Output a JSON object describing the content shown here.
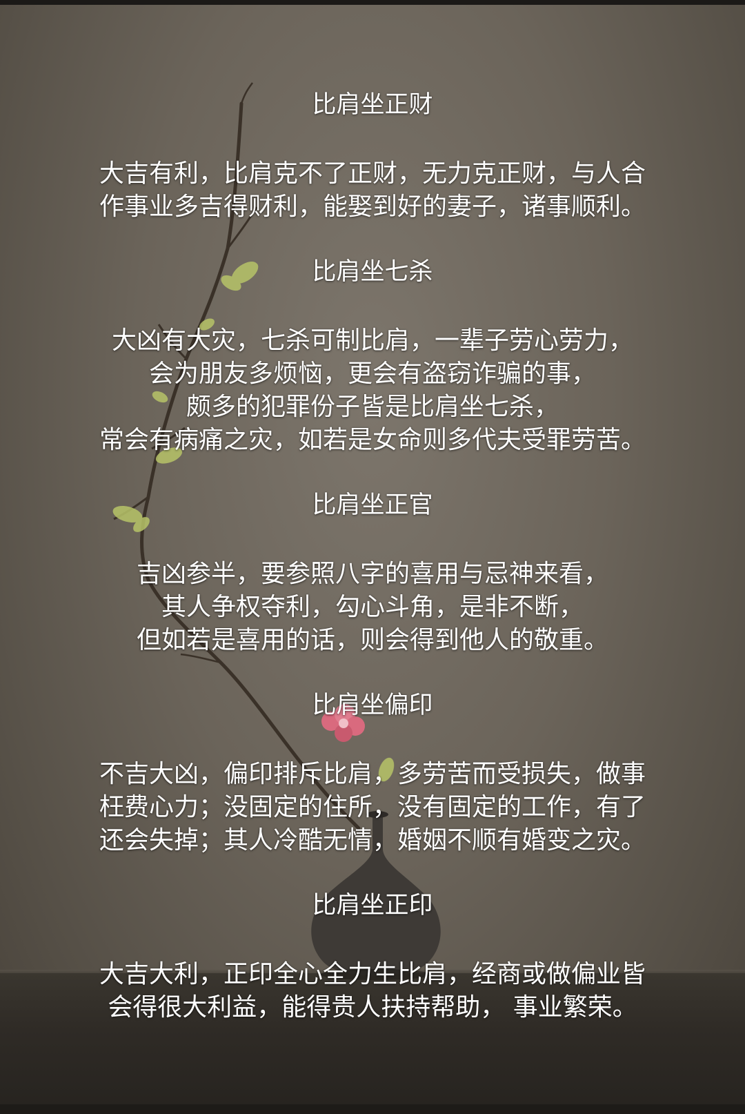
{
  "background": {
    "wall_color": "#6b645a",
    "table_color": "#2f2b26",
    "flower_color": "#d96a7e",
    "leaf_color": "#b7c468",
    "vase_color": "#3e3a36",
    "decor_icons": [
      "branch-icon",
      "blossom-icon",
      "vase-icon"
    ]
  },
  "sections": [
    {
      "title": "比肩坐正财",
      "lines": [
        "大吉有利，比肩克不了正财，无力克正财，与人合",
        "作事业多吉得财利，能娶到好的妻子，诸事顺利。"
      ]
    },
    {
      "title": "比肩坐七杀",
      "lines": [
        "大凶有大灾，七杀可制比肩，一辈子劳心劳力，",
        "会为朋友多烦恼，更会有盗窃诈骗的事，",
        "颇多的犯罪份子皆是比肩坐七杀，",
        "常会有病痛之灾，如若是女命则多代夫受罪劳苦。"
      ]
    },
    {
      "title": "比肩坐正官",
      "lines": [
        "吉凶参半，要参照八字的喜用与忌神来看，",
        "其人争权夺利，勾心斗角，是非不断，",
        "但如若是喜用的话，则会得到他人的敬重。"
      ]
    },
    {
      "title": "比肩坐偏印",
      "lines": [
        "不吉大凶，偏印排斥比肩，多劳苦而受损失，做事",
        "枉费心力；没固定的住所，没有固定的工作，有了",
        "还会失掉；其人冷酷无情，婚姻不顺有婚变之灾。"
      ]
    },
    {
      "title": "比肩坐正印",
      "lines": [
        "大吉大利，正印全心全力生比肩，经商或做偏业皆",
        "会得很大利益，能得贵人扶持帮助， 事业繁荣。"
      ]
    }
  ]
}
